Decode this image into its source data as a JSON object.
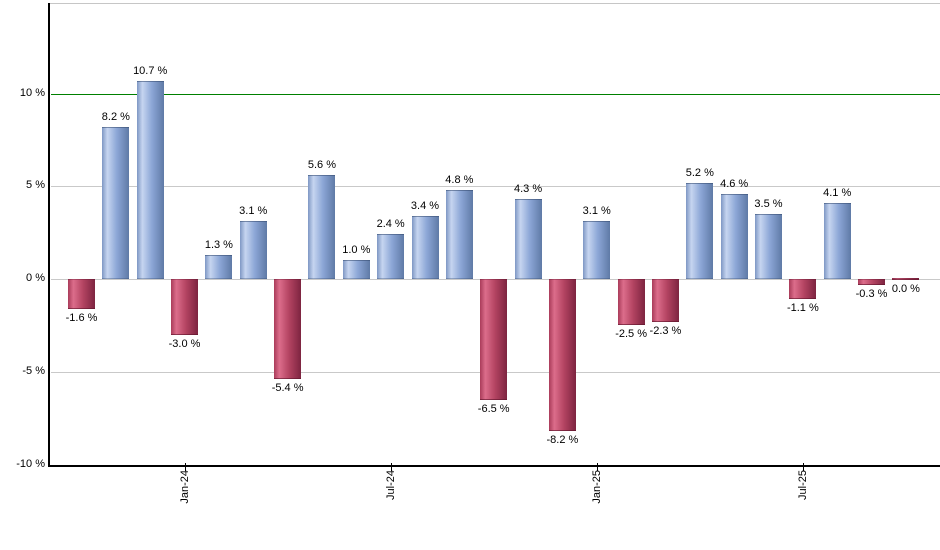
{
  "chart_data": {
    "type": "bar",
    "title": "",
    "xlabel": "",
    "ylabel": "",
    "unit": "%",
    "grid": true,
    "legend": false,
    "ylim": [
      -10,
      14.8
    ],
    "bars": [
      {
        "value": -1.6,
        "label": "-1.6 %"
      },
      {
        "value": 8.2,
        "label": "8.2 %"
      },
      {
        "value": 10.7,
        "label": "10.7 %"
      },
      {
        "value": -3.0,
        "label": "-3.0 %"
      },
      {
        "value": 1.3,
        "label": "1.3 %"
      },
      {
        "value": 3.1,
        "label": "3.1 %"
      },
      {
        "value": -5.4,
        "label": "-5.4 %"
      },
      {
        "value": 5.6,
        "label": "5.6 %"
      },
      {
        "value": 1.0,
        "label": "1.0 %"
      },
      {
        "value": 2.4,
        "label": "2.4 %"
      },
      {
        "value": 3.4,
        "label": "3.4 %"
      },
      {
        "value": 4.8,
        "label": "4.8 %"
      },
      {
        "value": -6.5,
        "label": "-6.5 %"
      },
      {
        "value": 4.3,
        "label": "4.3 %"
      },
      {
        "value": -8.2,
        "label": "-8.2 %"
      },
      {
        "value": 3.1,
        "label": "3.1 %"
      },
      {
        "value": -2.5,
        "label": "-2.5 %"
      },
      {
        "value": -2.3,
        "label": "-2.3 %"
      },
      {
        "value": 5.2,
        "label": "5.2 %"
      },
      {
        "value": 4.6,
        "label": "4.6 %"
      },
      {
        "value": 3.5,
        "label": "3.5 %"
      },
      {
        "value": -1.1,
        "label": "-1.1 %"
      },
      {
        "value": 4.1,
        "label": "4.1 %"
      },
      {
        "value": -0.3,
        "label": "-0.3 %"
      },
      {
        "value": 0.0,
        "label": "0.0 %"
      }
    ],
    "x_ticks": [
      {
        "label": "Jan-24",
        "bar_index": 3
      },
      {
        "label": "Jul-24",
        "bar_index": 9
      },
      {
        "label": "Jan-25",
        "bar_index": 15
      },
      {
        "label": "Jul-25",
        "bar_index": 21
      }
    ],
    "y_ticks": [
      {
        "value": 10,
        "label": "10 %"
      },
      {
        "value": 5,
        "label": "5 %"
      },
      {
        "value": 0,
        "label": "0 %"
      },
      {
        "value": -5,
        "label": "-5 %"
      },
      {
        "value": -10,
        "label": "-10 %"
      }
    ],
    "reference_line": {
      "value": 10
    },
    "colors": {
      "reference_line": "#008000",
      "gridline": "#c9c9c9",
      "axis": "#000000",
      "plot_border_top": "#c6c6c6",
      "label_text": "#000000",
      "positive_bar": {
        "edge_left": "#7e97c4",
        "highlight": "#c6d5f0",
        "mid": "#8ca6d6",
        "edge_right": "#5f7aa6"
      },
      "negative_bar": {
        "edge_left": "#a93b59",
        "highlight": "#dc6d8b",
        "mid": "#b44462",
        "edge_right": "#7d2440"
      }
    }
  }
}
